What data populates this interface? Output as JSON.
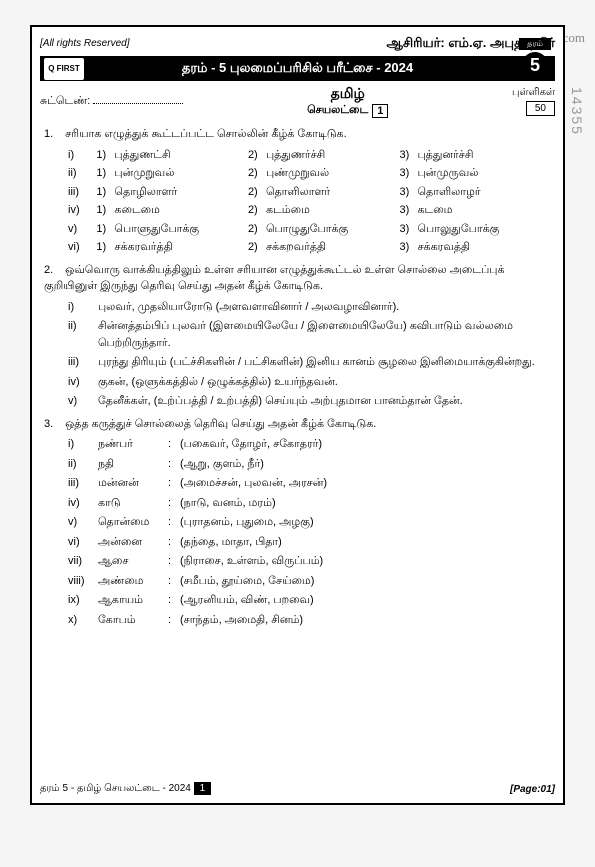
{
  "watermark": "GoQuora.com",
  "side_number": "14355",
  "header": {
    "copyright": "[All rights Reserved]",
    "author_label": "ஆசிரியர்:",
    "author": "எம்.ஏ. அபுதாஹிர்",
    "logo": "Q FIRST",
    "title": "தரம் - 5 புலமைப்பரிசில் பரீட்சை - 2024",
    "grade_label": "தரம்",
    "grade": "5",
    "index_label": "சுட்டெண்:",
    "subject": "தமிழ்",
    "sheet": "செயலட்டை",
    "sheet_num": "1",
    "marks_label": "புள்ளிகள்",
    "marks": "50"
  },
  "q1": {
    "num": "1.",
    "text": "சரியாக எழுத்துக் கூட்டப்பட்ட சொல்லின் கீழ்க் கோடிடுக.",
    "rows": [
      {
        "r": "i)",
        "o": [
          {
            "n": "1)",
            "t": "புத்துணட்சி"
          },
          {
            "n": "2)",
            "t": "புத்துணர்ச்சி"
          },
          {
            "n": "3)",
            "t": "புத்துனர்ச்சி"
          }
        ]
      },
      {
        "r": "ii)",
        "o": [
          {
            "n": "1)",
            "t": "புன்முறுவல்"
          },
          {
            "n": "2)",
            "t": "புண்முறுவல்"
          },
          {
            "n": "3)",
            "t": "புன்முருவல்"
          }
        ]
      },
      {
        "r": "iii)",
        "o": [
          {
            "n": "1)",
            "t": "தொழிலாளர்"
          },
          {
            "n": "2)",
            "t": "தொளிலாளர்"
          },
          {
            "n": "3)",
            "t": "தொளிலாழர்"
          }
        ]
      },
      {
        "r": "iv)",
        "o": [
          {
            "n": "1)",
            "t": "கடைமை"
          },
          {
            "n": "2)",
            "t": "கடம்மை"
          },
          {
            "n": "3)",
            "t": "கடமை"
          }
        ]
      },
      {
        "r": "v)",
        "o": [
          {
            "n": "1)",
            "t": "பொளுதுபோக்கு"
          },
          {
            "n": "2)",
            "t": "பொழுதுபோக்கு"
          },
          {
            "n": "3)",
            "t": "பொலுதுபோக்கு"
          }
        ]
      },
      {
        "r": "vi)",
        "o": [
          {
            "n": "1)",
            "t": "சக்கரவர்த்தி"
          },
          {
            "n": "2)",
            "t": "சக்கறவர்த்தி"
          },
          {
            "n": "3)",
            "t": "சக்கரவத்தி"
          }
        ]
      }
    ]
  },
  "q2": {
    "num": "2.",
    "text": "ஒவ்வொரு வாக்கியத்திலும் உள்ள சரியான எழுத்துக்கூட்டல் உள்ள சொல்லை அடைப்புக் குறியினுள் இருந்து தெரிவு செய்து அதன் கீழ்க் கோடிடுக.",
    "items": [
      {
        "r": "i)",
        "t": "புலவர், முதலியாரோடு (அளவளாவினார் / அலவழாவினார்)."
      },
      {
        "r": "ii)",
        "t": "சின்னத்தம்பிப் புலவர் (இளமையிலேயே / இளைமையிலேயே) கவிபாடும் வல்லமை பெற்றிருந்தார்."
      },
      {
        "r": "iii)",
        "t": "புரந்து திரியும் (பட்ச்சிகளின் / பட்சிகளின்) இனிய கானம் சூழலை இனிமையாக்குகின்றது."
      },
      {
        "r": "iv)",
        "t": "குகன், (ஒளுக்கத்தில் / ஒழுக்கத்தில்) உயர்ந்தவன்."
      },
      {
        "r": "v)",
        "t": "தேனீக்கள், (உற்ப்பத்தி / உற்பத்தி) செய்யும் அற்புதமான பானம்தான் தேன்."
      }
    ]
  },
  "q3": {
    "num": "3.",
    "text": "ஒத்த கருத்துச் சொல்லைத் தெரிவு செய்து அதன் கீழ்க் கோடிடுக.",
    "items": [
      {
        "r": "i)",
        "w": "நண்பர்",
        "o": "(பகைவர், தோழர், சகோதரர்)"
      },
      {
        "r": "ii)",
        "w": "நதி",
        "o": "(ஆறு, குளம், நீர்)"
      },
      {
        "r": "iii)",
        "w": "மன்னன்",
        "o": "(அமைச்சன், புலவன், அரசன்)"
      },
      {
        "r": "iv)",
        "w": "காடு",
        "o": "(நாடு, வனம், மரம்)"
      },
      {
        "r": "v)",
        "w": "தொன்மை",
        "o": "(புராதனம், புதுமை, அழகு)"
      },
      {
        "r": "vi)",
        "w": "அன்னை",
        "o": "(தந்தை, மாதா, பிதா)"
      },
      {
        "r": "vii)",
        "w": "ஆசை",
        "o": "(நிராசை, உள்ளம், விருப்பம்)"
      },
      {
        "r": "viii)",
        "w": "அண்மை",
        "o": "(சமீபம், தூய்மை, சேய்மை)"
      },
      {
        "r": "ix)",
        "w": "ஆகாயம்",
        "o": "(ஆரனியம், விண், பறவை)"
      },
      {
        "r": "x)",
        "w": "கோபம்",
        "o": "(சாந்தம், அமைதி, சினம்)"
      }
    ]
  },
  "footer": {
    "left": "தரம் 5 - தமிழ் செயலட்டை - 2024",
    "pg": "1",
    "right": "[Page:01]"
  }
}
